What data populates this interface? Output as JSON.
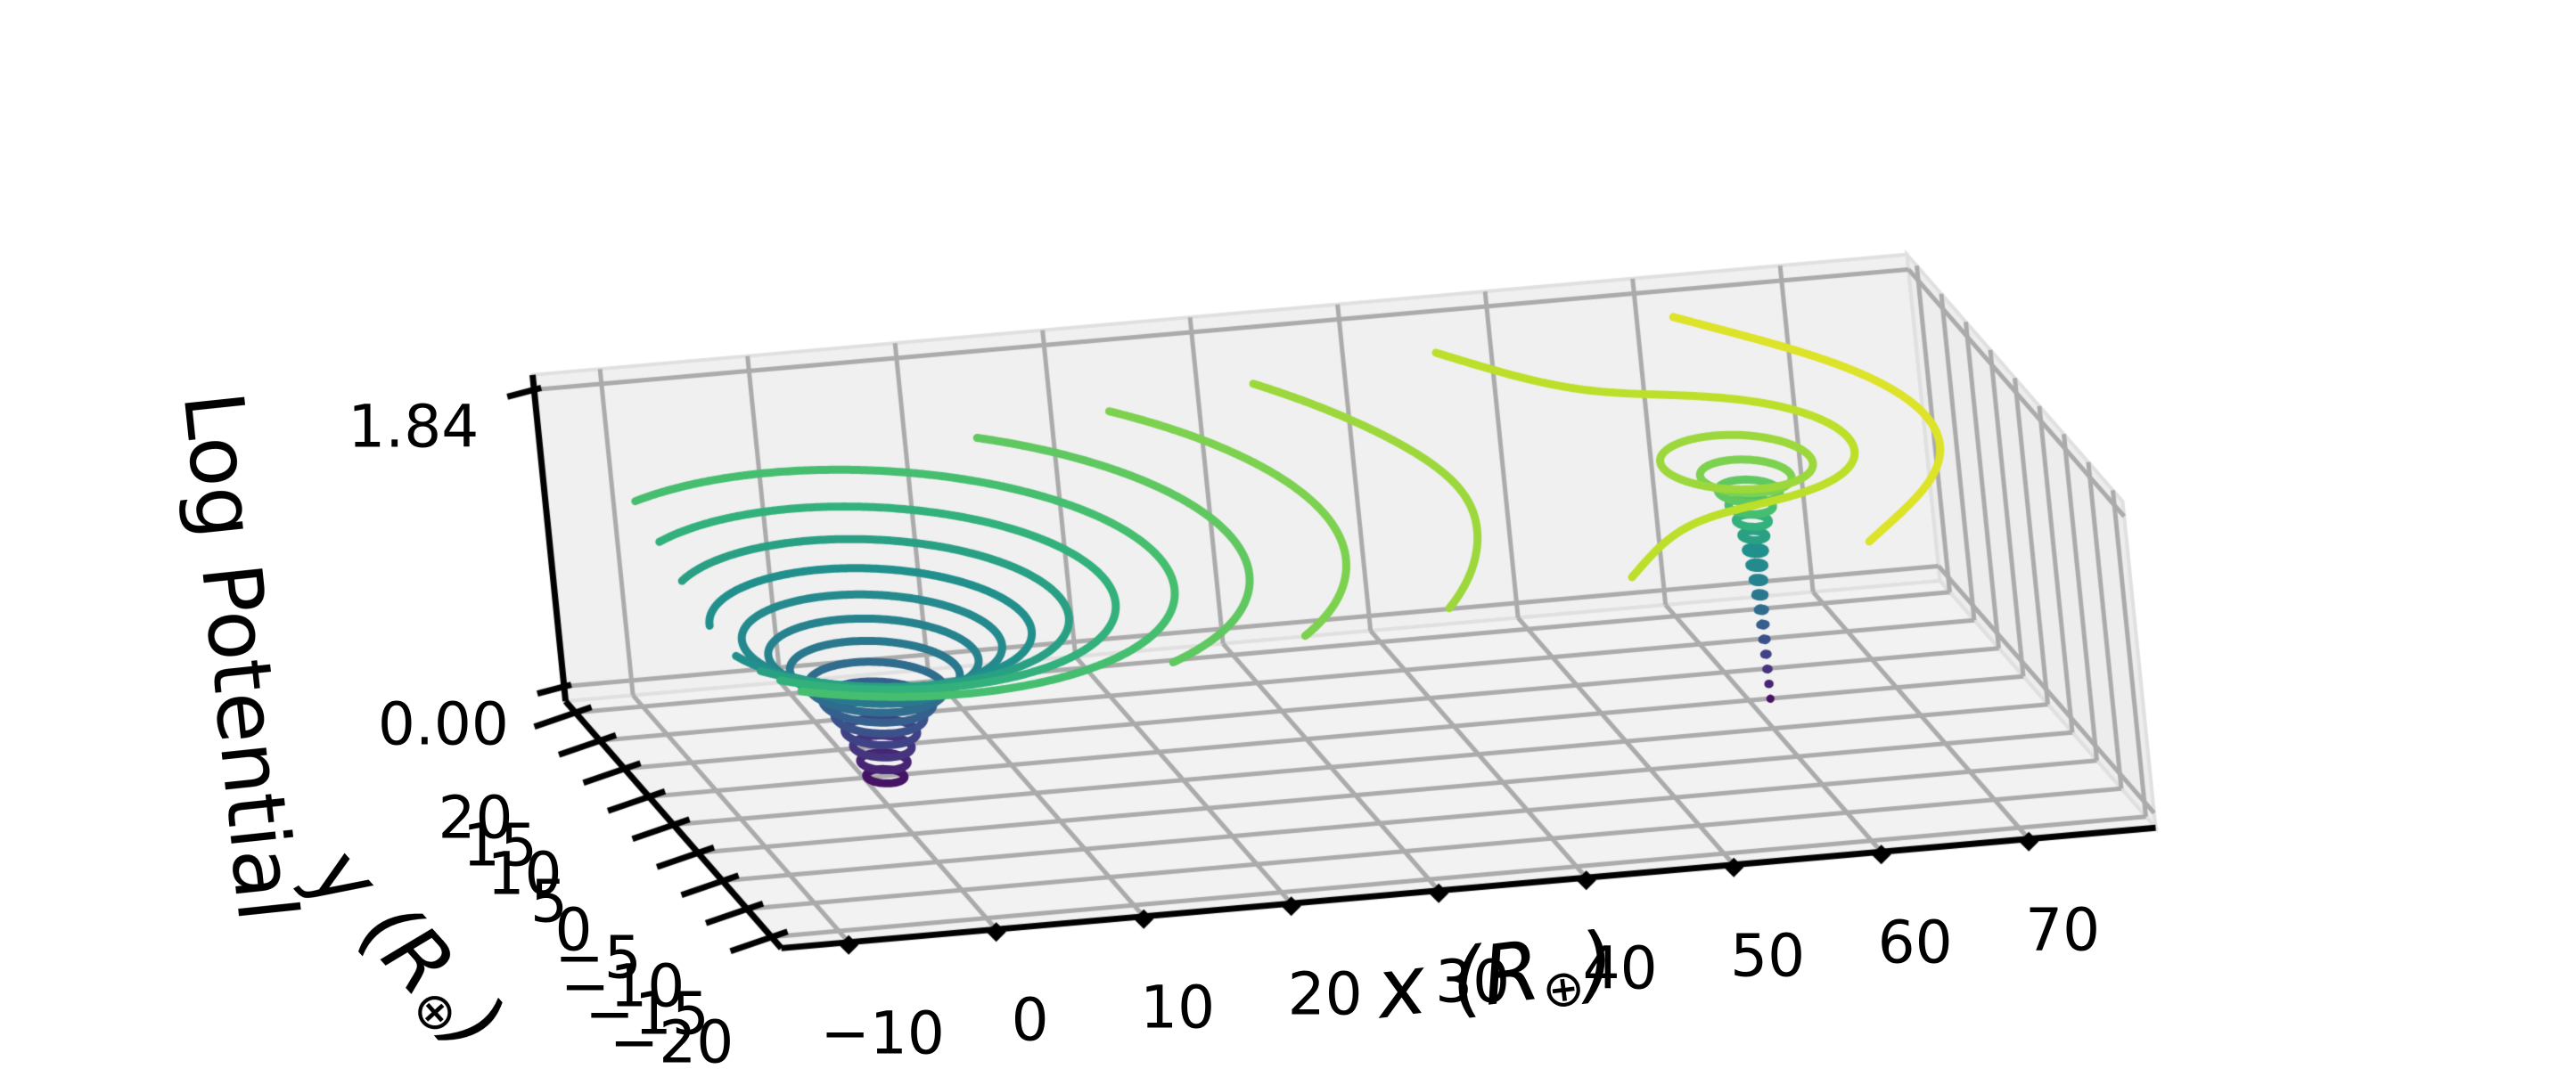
{
  "figure": {
    "background": "#ffffff"
  },
  "chart_data": {
    "type": "contour3d",
    "title": "",
    "zlabel": "Log Potential",
    "xlabel": {
      "main": "x (R",
      "sub": "⊕",
      "end": ")"
    },
    "ylabel": {
      "main": "y (R",
      "sub": "⊕",
      "end": ")"
    },
    "x_ticks": [
      {
        "v": -10,
        "label": "−10"
      },
      {
        "v": 0,
        "label": "0"
      },
      {
        "v": 10,
        "label": "10"
      },
      {
        "v": 20,
        "label": "20"
      },
      {
        "v": 30,
        "label": "30"
      },
      {
        "v": 40,
        "label": "40"
      },
      {
        "v": 50,
        "label": "50"
      },
      {
        "v": 60,
        "label": "60"
      },
      {
        "v": 70,
        "label": "70"
      }
    ],
    "y_ticks": [
      {
        "v": 20,
        "label": "20"
      },
      {
        "v": 15,
        "label": "15"
      },
      {
        "v": 10,
        "label": "10"
      },
      {
        "v": 5,
        "label": "5"
      },
      {
        "v": 0,
        "label": "0"
      },
      {
        "v": -5,
        "label": "−5"
      },
      {
        "v": -10,
        "label": "−10"
      },
      {
        "v": -15,
        "label": "−15"
      },
      {
        "v": -20,
        "label": "−20"
      }
    ],
    "z_ticks": [
      {
        "v": 0,
        "label": "0.00"
      },
      {
        "v": 1.84,
        "label": "1.84"
      }
    ],
    "x_data_range": [
      -10,
      75
    ],
    "y_data_range": [
      -20,
      20
    ],
    "z_range": [
      0,
      1.84
    ],
    "axis_limits": {
      "x": [
        -14.57,
        78.6
      ],
      "y": [
        -22,
        22
      ],
      "z": [
        -0.092,
        1.932
      ]
    },
    "field": {
      "type": "log-potential-two-wells",
      "transform": "z = -log10( sum_i mu_i / r_i )",
      "wells": [
        {
          "x": 0,
          "y": 0,
          "mu": 1.0
        },
        {
          "x": 60,
          "y": 0,
          "mu": 0.05
        }
      ]
    },
    "levels": [
      0.092,
      0.184,
      0.276,
      0.368,
      0.46,
      0.552,
      0.644,
      0.736,
      0.828,
      0.92,
      1.012,
      1.104,
      1.196,
      1.288,
      1.38,
      1.472,
      1.564,
      1.656,
      1.748
    ],
    "grid_resolution": {
      "dx": 0.2,
      "dy": 0.2
    },
    "colormap": {
      "name": "viridis",
      "anchors": [
        "#440154",
        "#482878",
        "#3e4989",
        "#31688e",
        "#26828e",
        "#21918c",
        "#35b779",
        "#6ece58",
        "#b5de2b",
        "#fde725"
      ]
    },
    "style": {
      "grid_color": "#ababab",
      "pane_back": "#f0f0f0",
      "pane_right": "#ededed",
      "pane_floor": "#f2f2f2",
      "pane_edge": "#e0e0e0",
      "axis_color": "#000000",
      "contour_linewidth": 9
    },
    "view": {
      "projection": "orthographic",
      "origin": [
        995,
        888
      ],
      "ex": [
        16.55,
        -1.45
      ],
      "ey": [
        -5.5,
        -6.3
      ],
      "ez": [
        -18.3,
        -181
      ]
    }
  }
}
